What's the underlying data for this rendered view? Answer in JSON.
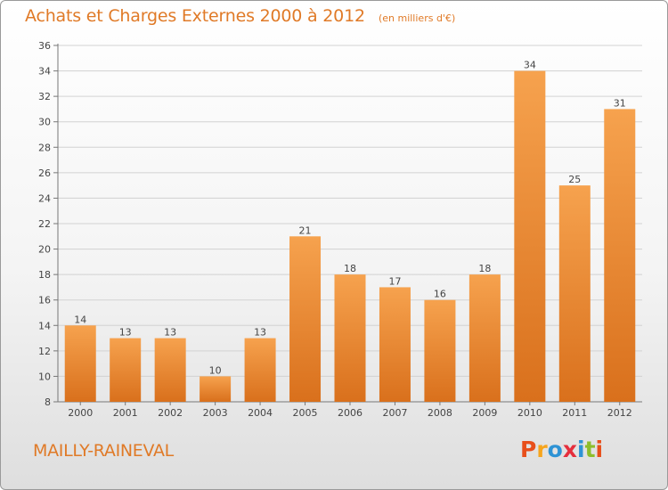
{
  "header": {
    "title": "Achats et Charges Externes 2000 à 2012",
    "unit": "(en milliers d'€)"
  },
  "footer": {
    "location": "MAILLY-RAINEVAL",
    "logo_text": "Proxiti"
  },
  "colors": {
    "title": "#e07a27",
    "bar_light": "#f6a24e",
    "bar_dark": "#d9701c",
    "logo_letters": [
      "#e84f1b",
      "#f6a51e",
      "#2e93d5",
      "#e52f3d",
      "#2e93d5",
      "#8dbd2b",
      "#e84f1b"
    ]
  },
  "chart_data": {
    "type": "bar",
    "title": "Achats et Charges Externes 2000 à 2012",
    "subtitle": "(en milliers d'€)",
    "categories": [
      "2000",
      "2001",
      "2002",
      "2003",
      "2004",
      "2005",
      "2006",
      "2007",
      "2008",
      "2009",
      "2010",
      "2011",
      "2012"
    ],
    "values": [
      14,
      13,
      13,
      10,
      13,
      21,
      18,
      17,
      16,
      18,
      34,
      25,
      31
    ],
    "ylim": [
      8,
      36
    ],
    "yticks": [
      8,
      10,
      12,
      14,
      16,
      18,
      20,
      22,
      24,
      26,
      28,
      30,
      32,
      34,
      36
    ],
    "grid": true,
    "xlabel": "",
    "ylabel": ""
  }
}
